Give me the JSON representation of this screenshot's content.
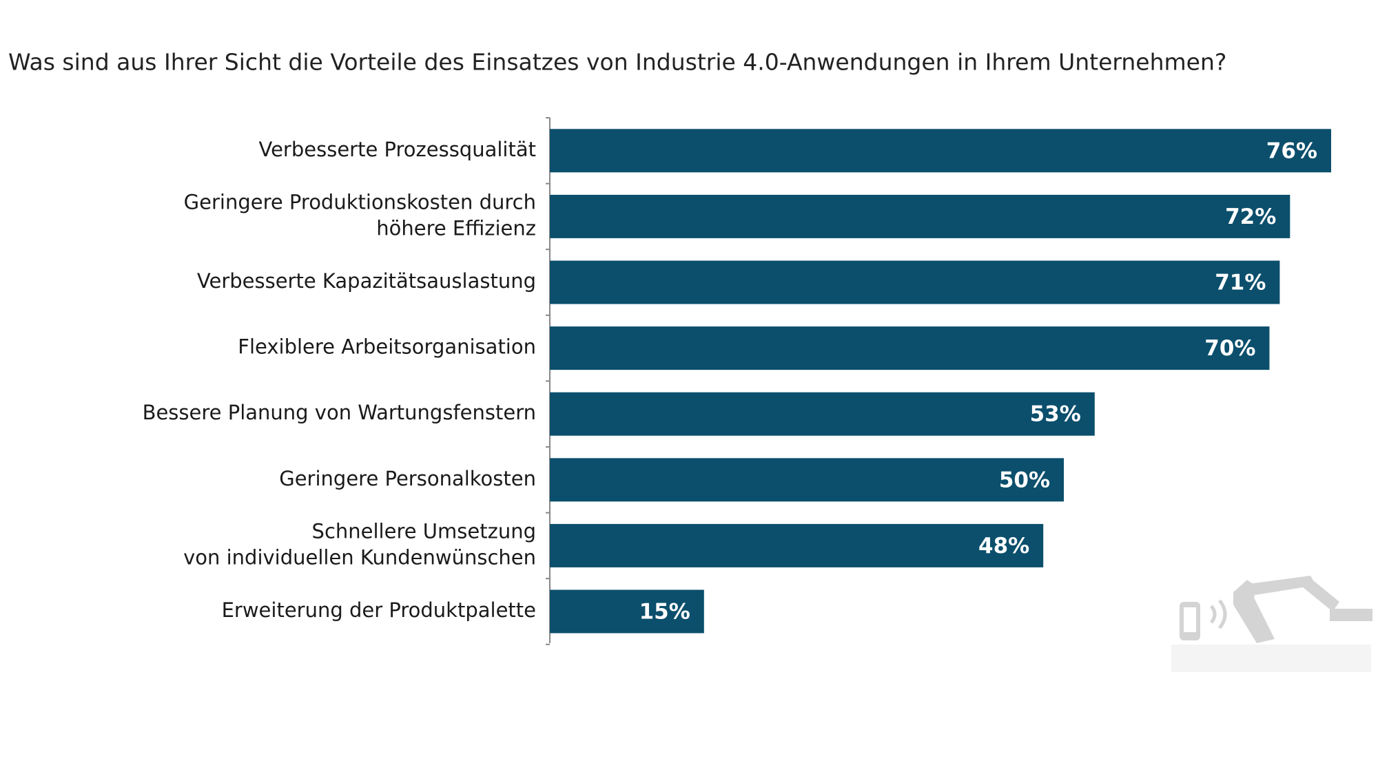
{
  "chart_data": {
    "type": "bar",
    "orientation": "horizontal",
    "title": "Was sind aus Ihrer Sicht die Vorteile des Einsatzes von Industrie 4.0-Anwendungen in Ihrem Unternehmen?",
    "categories": [
      "Verbesserte Prozessqualität",
      "Geringere Produktionskosten durch\nhöhere Effizienz",
      "Verbesserte Kapazitätsauslastung",
      "Flexiblere Arbeitsorganisation",
      "Bessere Planung von Wartungsfenstern",
      "Geringere Personalkosten",
      "Schnellere Umsetzung\nvon individuellen Kundenwünschen",
      "Erweiterung der Produktpalette"
    ],
    "values": [
      76,
      72,
      71,
      70,
      53,
      50,
      48,
      15
    ],
    "value_labels": [
      "76%",
      "72%",
      "71%",
      "70%",
      "53%",
      "50%",
      "48%",
      "15%"
    ],
    "color": "#0b4f6c"
  }
}
